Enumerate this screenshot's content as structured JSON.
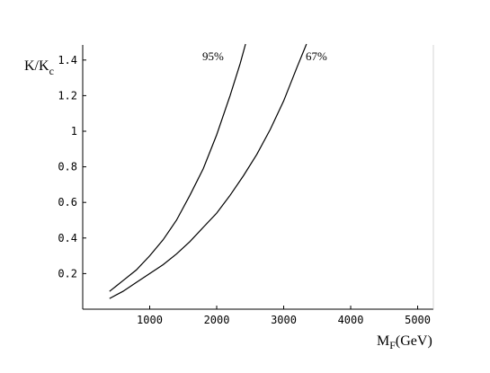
{
  "chart_data": {
    "type": "line",
    "ylabel": {
      "main": "K/K",
      "sub": "c"
    },
    "xlabel": {
      "main": "M",
      "sub": "F",
      "unit": "(GeV)"
    },
    "xlim": [
      0,
      5100
    ],
    "ylim": [
      0,
      1.5
    ],
    "grid": false,
    "x_ticks": [
      1000,
      2000,
      3000,
      4000,
      5000
    ],
    "x_tick_labels": [
      "1000",
      "2000",
      "3000",
      "4000",
      "5000"
    ],
    "y_ticks": [
      0.2,
      0.4,
      0.6,
      0.8,
      1.0,
      1.2,
      1.4
    ],
    "y_tick_labels": [
      "0.2",
      "0.4",
      "0.6",
      "0.8",
      "1",
      "1.2",
      "1.4"
    ],
    "series": [
      {
        "name": "95%",
        "x": [
          400,
          600,
          800,
          1000,
          1200,
          1400,
          1600,
          1800,
          2000,
          2200,
          2350,
          2430
        ],
        "y": [
          0.1,
          0.16,
          0.22,
          0.3,
          0.39,
          0.5,
          0.64,
          0.79,
          0.98,
          1.2,
          1.38,
          1.49
        ]
      },
      {
        "name": "67%",
        "x": [
          400,
          600,
          800,
          1000,
          1200,
          1400,
          1600,
          1800,
          2000,
          2200,
          2400,
          2600,
          2800,
          3000,
          3200,
          3340
        ],
        "y": [
          0.06,
          0.1,
          0.15,
          0.2,
          0.25,
          0.31,
          0.38,
          0.46,
          0.54,
          0.64,
          0.75,
          0.87,
          1.01,
          1.17,
          1.36,
          1.49
        ]
      }
    ]
  }
}
